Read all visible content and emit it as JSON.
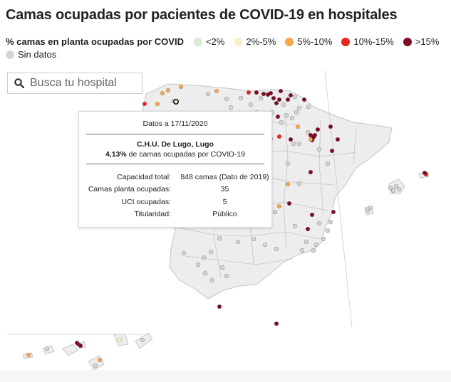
{
  "title": "Camas ocupadas por pacientes de COVID-19 en hospitales",
  "legend": {
    "title": "% camas en planta ocupadas por COVID",
    "items": [
      {
        "label": "<2%",
        "color": "#d9ecd2"
      },
      {
        "label": "2%-5%",
        "color": "#fbefc5"
      },
      {
        "label": "5%-10%",
        "color": "#f6a84b"
      },
      {
        "label": "10%-15%",
        "color": "#e8261c"
      },
      {
        "label": ">15%",
        "color": "#7d0b24"
      },
      {
        "label": "Sin datos",
        "color": "#d6d6d6"
      }
    ]
  },
  "search": {
    "placeholder": "Busca tu hospital"
  },
  "tooltip": {
    "date": "Datos a 17/11/2020",
    "hospital": "C.H.U. De Lugo, Lugo",
    "pct_value": "4,13%",
    "pct_text": " de camas ocupadas por COVID-19",
    "rows": [
      {
        "key": "Capacidad total:",
        "value": "848 camas (Dato de 2019)"
      },
      {
        "key": "Camas planta ocupadas:",
        "value": "35"
      },
      {
        "key": "UCI ocupadas:",
        "value": "5"
      },
      {
        "key": "Titularidad:",
        "value": "Público"
      }
    ]
  },
  "colors": {
    "map_fill": "#ededed",
    "map_border": "#c4c4c4",
    "selected_stroke": "#111111"
  }
}
